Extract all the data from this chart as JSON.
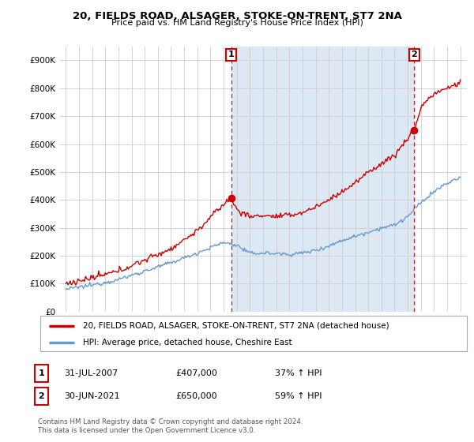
{
  "title": "20, FIELDS ROAD, ALSAGER, STOKE-ON-TRENT, ST7 2NA",
  "subtitle": "Price paid vs. HM Land Registry's House Price Index (HPI)",
  "legend_entry1": "20, FIELDS ROAD, ALSAGER, STOKE-ON-TRENT, ST7 2NA (detached house)",
  "legend_entry2": "HPI: Average price, detached house, Cheshire East",
  "annotation1_label": "1",
  "annotation1_date": "31-JUL-2007",
  "annotation1_price": "£407,000",
  "annotation1_hpi": "37% ↑ HPI",
  "annotation2_label": "2",
  "annotation2_date": "30-JUN-2021",
  "annotation2_price": "£650,000",
  "annotation2_hpi": "59% ↑ HPI",
  "footnote": "Contains HM Land Registry data © Crown copyright and database right 2024.\nThis data is licensed under the Open Government Licence v3.0.",
  "sale1_x": 2007.58,
  "sale1_y": 407000,
  "sale2_x": 2021.5,
  "sale2_y": 650000,
  "ylim": [
    0,
    950000
  ],
  "xlim": [
    1994.5,
    2025.5
  ],
  "hpi_color": "#6699cc",
  "price_color": "#cc0000",
  "vline_color": "#cc0000",
  "shade_color": "#dde8f5",
  "background_color": "#ffffff",
  "grid_color": "#cccccc"
}
